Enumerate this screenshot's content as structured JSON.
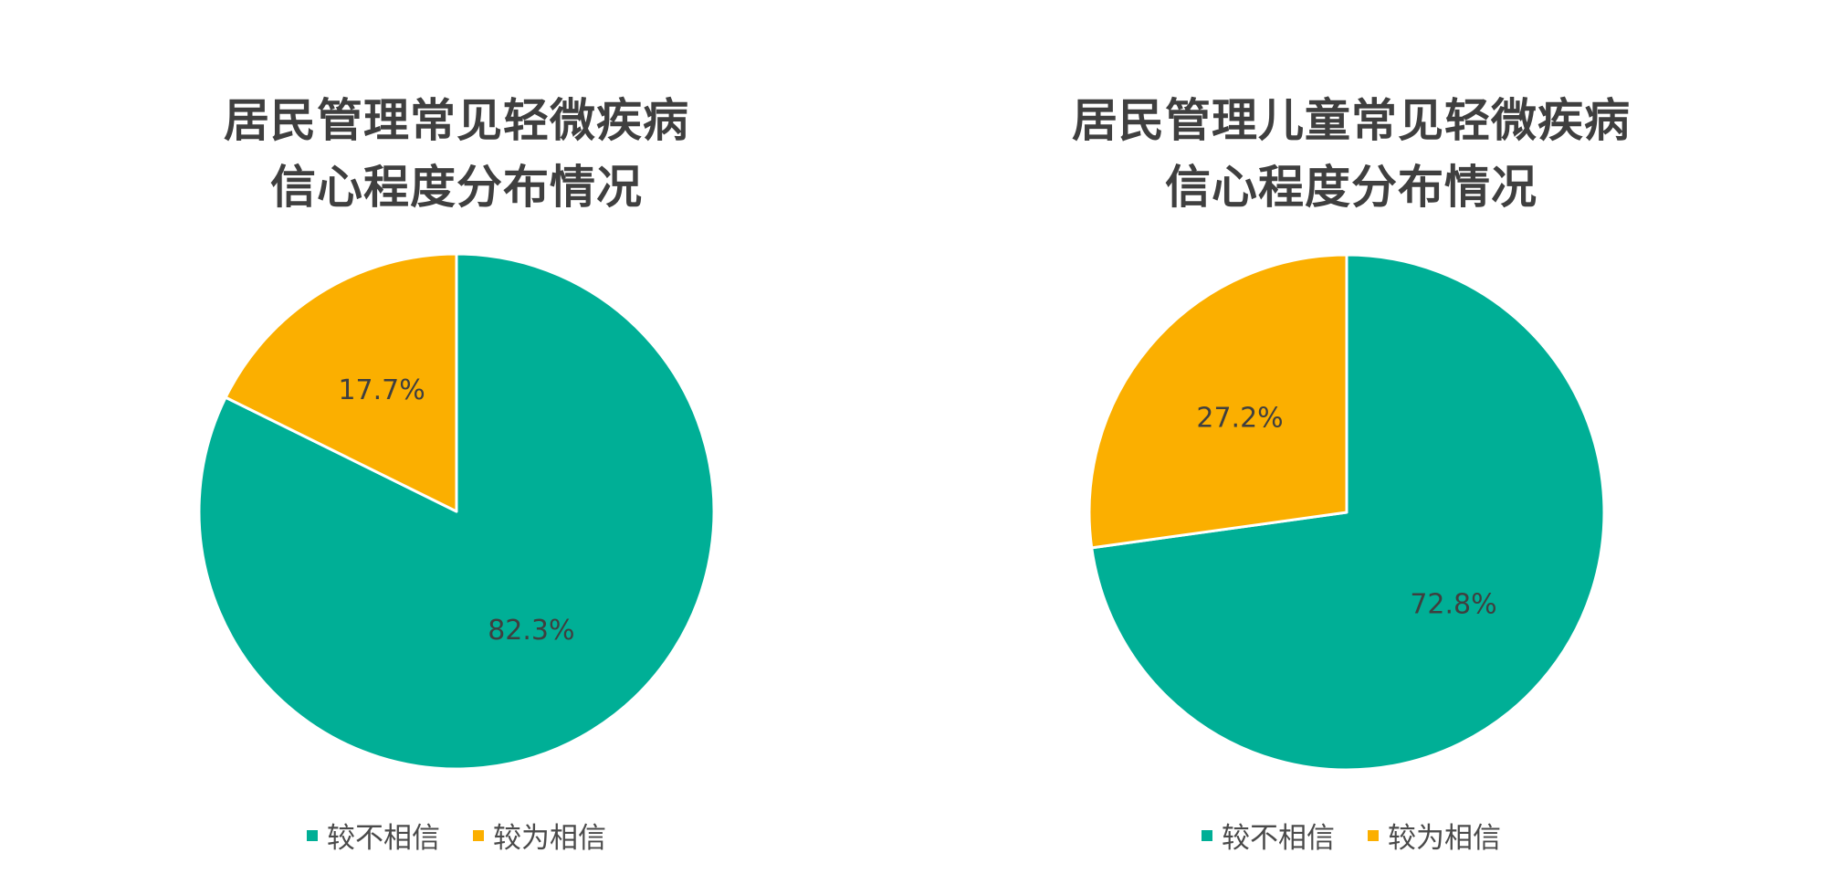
{
  "chart_data": [
    {
      "type": "pie",
      "title": [
        "居民管理常见轻微疾病",
        "信心程度分布情况"
      ],
      "categories": [
        "较不相信",
        "较为相信"
      ],
      "values": [
        82.3,
        17.7
      ],
      "data_labels": [
        "82.3%",
        "17.7%"
      ],
      "colors": [
        "#00AF96",
        "#FBAF00"
      ],
      "legend_position": "bottom"
    },
    {
      "type": "pie",
      "title": [
        "居民管理儿童常见轻微疾病",
        "信心程度分布情况"
      ],
      "categories": [
        "较不相信",
        "较为相信"
      ],
      "values": [
        72.8,
        27.2
      ],
      "data_labels": [
        "72.8%",
        "27.2%"
      ],
      "colors": [
        "#00AF96",
        "#FBAF00"
      ],
      "legend_position": "bottom"
    }
  ]
}
